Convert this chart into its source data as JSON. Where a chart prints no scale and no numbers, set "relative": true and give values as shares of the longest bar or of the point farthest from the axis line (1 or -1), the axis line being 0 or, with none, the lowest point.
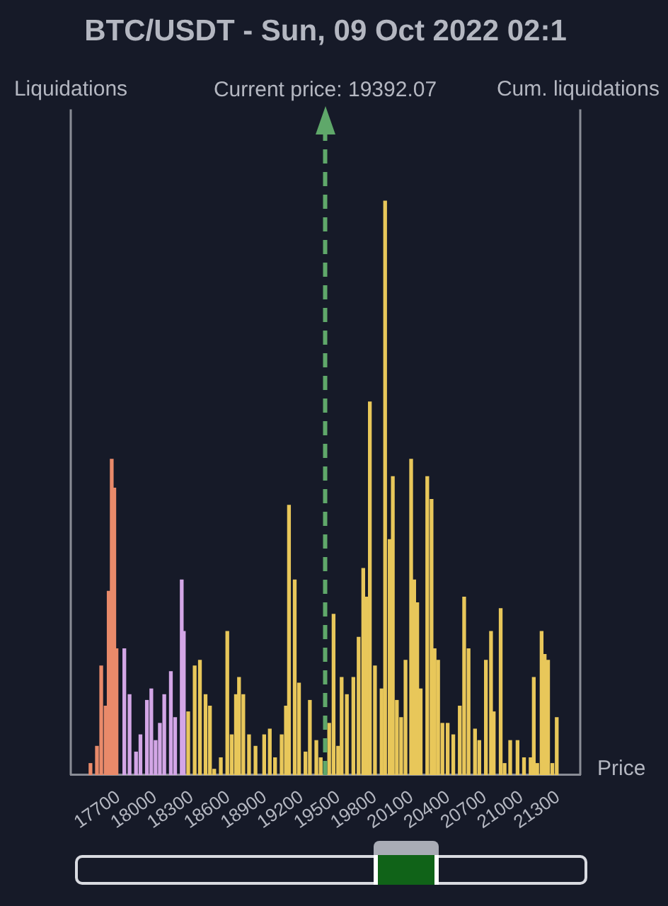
{
  "chart_data": {
    "type": "bar",
    "title": "BTC/USDT - Sun, 09 Oct 2022 02:1",
    "ylabel": "Liquidations",
    "y2label": "Cum. liquidations",
    "xlabel": "Price",
    "relative": true,
    "grid": false,
    "legend": false,
    "xlim": [
      17470,
      21320
    ],
    "xticks": [
      17700,
      18000,
      18300,
      18600,
      18900,
      19200,
      19500,
      19800,
      20100,
      20400,
      20700,
      21000,
      21300
    ],
    "ref_lines": [
      {
        "axis": "x",
        "value": 19392.07,
        "label": "Current price: 19392.07",
        "color": "#5fa86a",
        "line_style": "dashed"
      }
    ],
    "series": [
      {
        "color": "#e98a6a",
        "x": [
          17471,
          17524,
          17559,
          17595,
          17620,
          17645,
          17666,
          17684
        ],
        "values": [
          0.02,
          0.05,
          0.19,
          0.12,
          0.32,
          0.55,
          0.5,
          0.22
        ]
      },
      {
        "color": "#d3a6e6",
        "x": [
          17748,
          17791,
          17844,
          17880,
          17933,
          17969,
          18004,
          18039,
          18075,
          18129,
          18164,
          18218,
          18235
        ],
        "values": [
          0.22,
          0.14,
          0.04,
          0.07,
          0.13,
          0.15,
          0.06,
          0.09,
          0.14,
          0.18,
          0.1,
          0.34,
          0.25
        ]
      },
      {
        "color": "#e8c75a",
        "x": [
          18271,
          18324,
          18367,
          18413,
          18449,
          18484,
          18538,
          18591,
          18627,
          18662,
          18687,
          18722,
          18769,
          18822,
          18893,
          18939,
          18982,
          19036,
          19071,
          19096,
          19143,
          19178,
          19231,
          19267,
          19320,
          19356,
          19425,
          19461,
          19498,
          19527,
          19570,
          19623,
          19666,
          19704,
          19730,
          19758,
          19800,
          19854,
          19883,
          19920,
          19946,
          19979,
          20014,
          20050,
          20096,
          20121,
          20146,
          20174,
          20228,
          20263,
          20288,
          20317,
          20352,
          20395,
          20441,
          20494,
          20530,
          20566,
          20619,
          20654,
          20708,
          20750,
          20772,
          20829,
          20861,
          20907,
          20967,
          21020,
          21074,
          21100,
          21128,
          21164,
          21189,
          21217,
          21252,
          21288
        ],
        "values": [
          0.11,
          0.19,
          0.2,
          0.14,
          0.12,
          0.01,
          0.03,
          0.25,
          0.07,
          0.14,
          0.17,
          0.14,
          0.07,
          0.05,
          0.07,
          0.08,
          0.03,
          0.07,
          0.12,
          0.47,
          0.34,
          0.16,
          0.04,
          0.13,
          0.06,
          0.03,
          0.09,
          0.28,
          0.05,
          0.17,
          0.14,
          0.17,
          0.24,
          0.36,
          0.31,
          0.65,
          0.19,
          0.15,
          1,
          0.41,
          0.52,
          0.13,
          0.1,
          0.2,
          0.55,
          0.34,
          0.3,
          0.15,
          0.52,
          0.48,
          0.22,
          0.2,
          0.09,
          0.09,
          0.07,
          0.12,
          0.31,
          0.22,
          0.08,
          0.06,
          0.2,
          0.25,
          0.11,
          0.29,
          0.02,
          0.06,
          0.06,
          0.03,
          0.03,
          0.17,
          0.02,
          0.25,
          0.21,
          0.2,
          0.02,
          0.1
        ]
      }
    ]
  }
}
